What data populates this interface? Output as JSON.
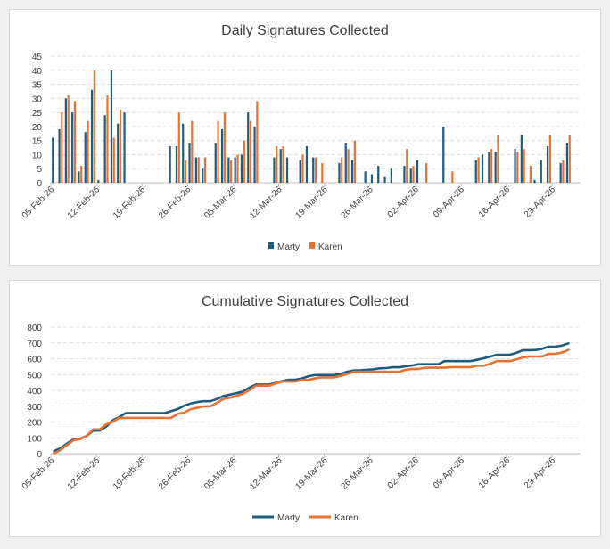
{
  "colors": {
    "marty": "#1f5b7f",
    "karen": "#e97132"
  },
  "chart_data": [
    {
      "type": "bar",
      "title": "Daily Signatures Collected",
      "start_date": "2026-02-05",
      "ylim": [
        0,
        45
      ],
      "yticks": [
        0,
        5,
        10,
        15,
        20,
        25,
        30,
        35,
        40,
        45
      ],
      "xtick_labels": [
        "05-Feb-26",
        "12-Feb-26",
        "19-Feb-26",
        "26-Feb-26",
        "05-Mar-26",
        "12-Mar-26",
        "19-Mar-26",
        "26-Mar-26",
        "02-Apr-26",
        "09-Apr-26",
        "16-Apr-26",
        "23-Apr-26"
      ],
      "legend": [
        "Marty",
        "Karen"
      ],
      "series": [
        {
          "name": "Marty",
          "values": [
            16,
            19,
            30,
            25,
            4,
            18,
            33,
            1,
            24,
            40,
            21,
            25,
            0,
            0,
            0,
            0,
            0,
            0,
            13,
            13,
            21,
            14,
            9,
            5,
            0,
            14,
            19,
            9,
            9,
            10,
            25,
            20,
            0,
            0,
            9,
            12,
            9,
            0,
            8,
            13,
            9,
            0,
            0,
            0,
            7,
            14,
            8,
            0,
            4,
            3,
            6,
            2,
            5,
            0,
            6,
            5,
            8,
            0,
            0,
            0,
            20,
            0,
            0,
            0,
            0,
            8,
            10,
            11,
            11,
            0,
            0,
            12,
            17,
            0,
            1,
            8,
            13,
            0,
            7,
            14
          ]
        },
        {
          "name": "Karen",
          "values": [
            0,
            25,
            31,
            29,
            6,
            22,
            40,
            0,
            31,
            16,
            26,
            0,
            0,
            0,
            0,
            0,
            0,
            0,
            0,
            25,
            8,
            22,
            9,
            9,
            0,
            22,
            25,
            8,
            10,
            15,
            22,
            29,
            0,
            0,
            13,
            13,
            0,
            0,
            10,
            0,
            9,
            7,
            0,
            0,
            9,
            12,
            15,
            0,
            0,
            0,
            0,
            0,
            0,
            0,
            12,
            6,
            0,
            7,
            0,
            0,
            0,
            4,
            0,
            0,
            0,
            9,
            0,
            12,
            17,
            0,
            0,
            11,
            12,
            6,
            0,
            0,
            17,
            0,
            8,
            17
          ]
        }
      ]
    },
    {
      "type": "line",
      "title": "Cumulative Signatures Collected",
      "start_date": "2026-02-05",
      "ylim": [
        0,
        800
      ],
      "yticks": [
        0,
        100,
        200,
        300,
        400,
        500,
        600,
        700,
        800
      ],
      "xtick_labels": [
        "05-Feb-26",
        "12-Feb-26",
        "19-Feb-26",
        "26-Feb-26",
        "05-Mar-26",
        "12-Mar-26",
        "19-Mar-26",
        "26-Mar-26",
        "02-Apr-26",
        "09-Apr-26",
        "16-Apr-26",
        "23-Apr-26"
      ],
      "legend": [
        "Marty",
        "Karen"
      ],
      "series": [
        {
          "name": "Marty",
          "values": [
            16,
            35,
            65,
            90,
            94,
            112,
            145,
            146,
            170,
            210,
            231,
            256,
            256,
            256,
            256,
            256,
            256,
            256,
            269,
            282,
            303,
            317,
            326,
            331,
            331,
            345,
            364,
            373,
            382,
            392,
            417,
            437,
            437,
            437,
            446,
            458,
            467,
            467,
            475,
            488,
            497,
            497,
            497,
            497,
            504,
            518,
            526,
            526,
            530,
            533,
            539,
            541,
            546,
            546,
            552,
            557,
            565,
            565,
            565,
            565,
            585,
            585,
            585,
            585,
            585,
            593,
            603,
            614,
            625,
            625,
            625,
            637,
            654,
            654,
            655,
            663,
            676,
            676,
            683,
            697
          ]
        },
        {
          "name": "Karen",
          "values": [
            0,
            25,
            56,
            85,
            91,
            113,
            153,
            153,
            184,
            200,
            226,
            226,
            226,
            226,
            226,
            226,
            226,
            226,
            226,
            251,
            259,
            281,
            290,
            299,
            299,
            321,
            346,
            354,
            364,
            379,
            401,
            430,
            430,
            430,
            443,
            456,
            456,
            456,
            466,
            466,
            475,
            482,
            482,
            482,
            491,
            503,
            518,
            518,
            518,
            518,
            518,
            518,
            518,
            518,
            530,
            536,
            536,
            543,
            543,
            543,
            543,
            547,
            547,
            547,
            547,
            556,
            556,
            568,
            585,
            585,
            585,
            596,
            608,
            614,
            614,
            614,
            631,
            631,
            639,
            656
          ]
        }
      ]
    }
  ]
}
